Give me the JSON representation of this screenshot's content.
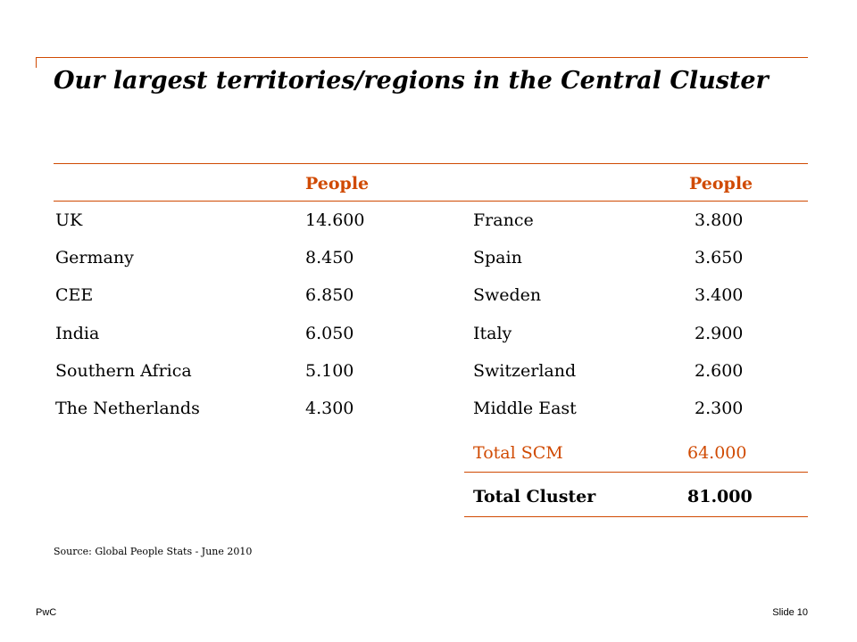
{
  "title": "Our largest territories/regions in the Central Cluster",
  "colors": {
    "accent": "#d04a02",
    "text": "#000000",
    "background": "#ffffff"
  },
  "table": {
    "header": {
      "col_left": "People",
      "col_right": "People"
    },
    "rows": [
      {
        "region_left": "UK",
        "people_left": "14.600",
        "region_right": "France",
        "people_right": "3.800"
      },
      {
        "region_left": "Germany",
        "people_left": "8.450",
        "region_right": "Spain",
        "people_right": "3.650"
      },
      {
        "region_left": "CEE",
        "people_left": "6.850",
        "region_right": "Sweden",
        "people_right": "3.400"
      },
      {
        "region_left": "India",
        "people_left": "6.050",
        "region_right": "Italy",
        "people_right": "2.900"
      },
      {
        "region_left": "Southern Africa",
        "people_left": "5.100",
        "region_right": "Switzerland",
        "people_right": "2.600"
      },
      {
        "region_left": "The Netherlands",
        "people_left": "4.300",
        "region_right": "Middle East",
        "people_right": "2.300"
      }
    ],
    "total_scm": {
      "label": "Total SCM",
      "value": "64.000"
    },
    "total_cluster": {
      "label": "Total Cluster",
      "value": "81.000"
    }
  },
  "source": "Source: Global People Stats - June 2010",
  "footer": {
    "brand": "PwC",
    "slide": "Slide 10"
  }
}
